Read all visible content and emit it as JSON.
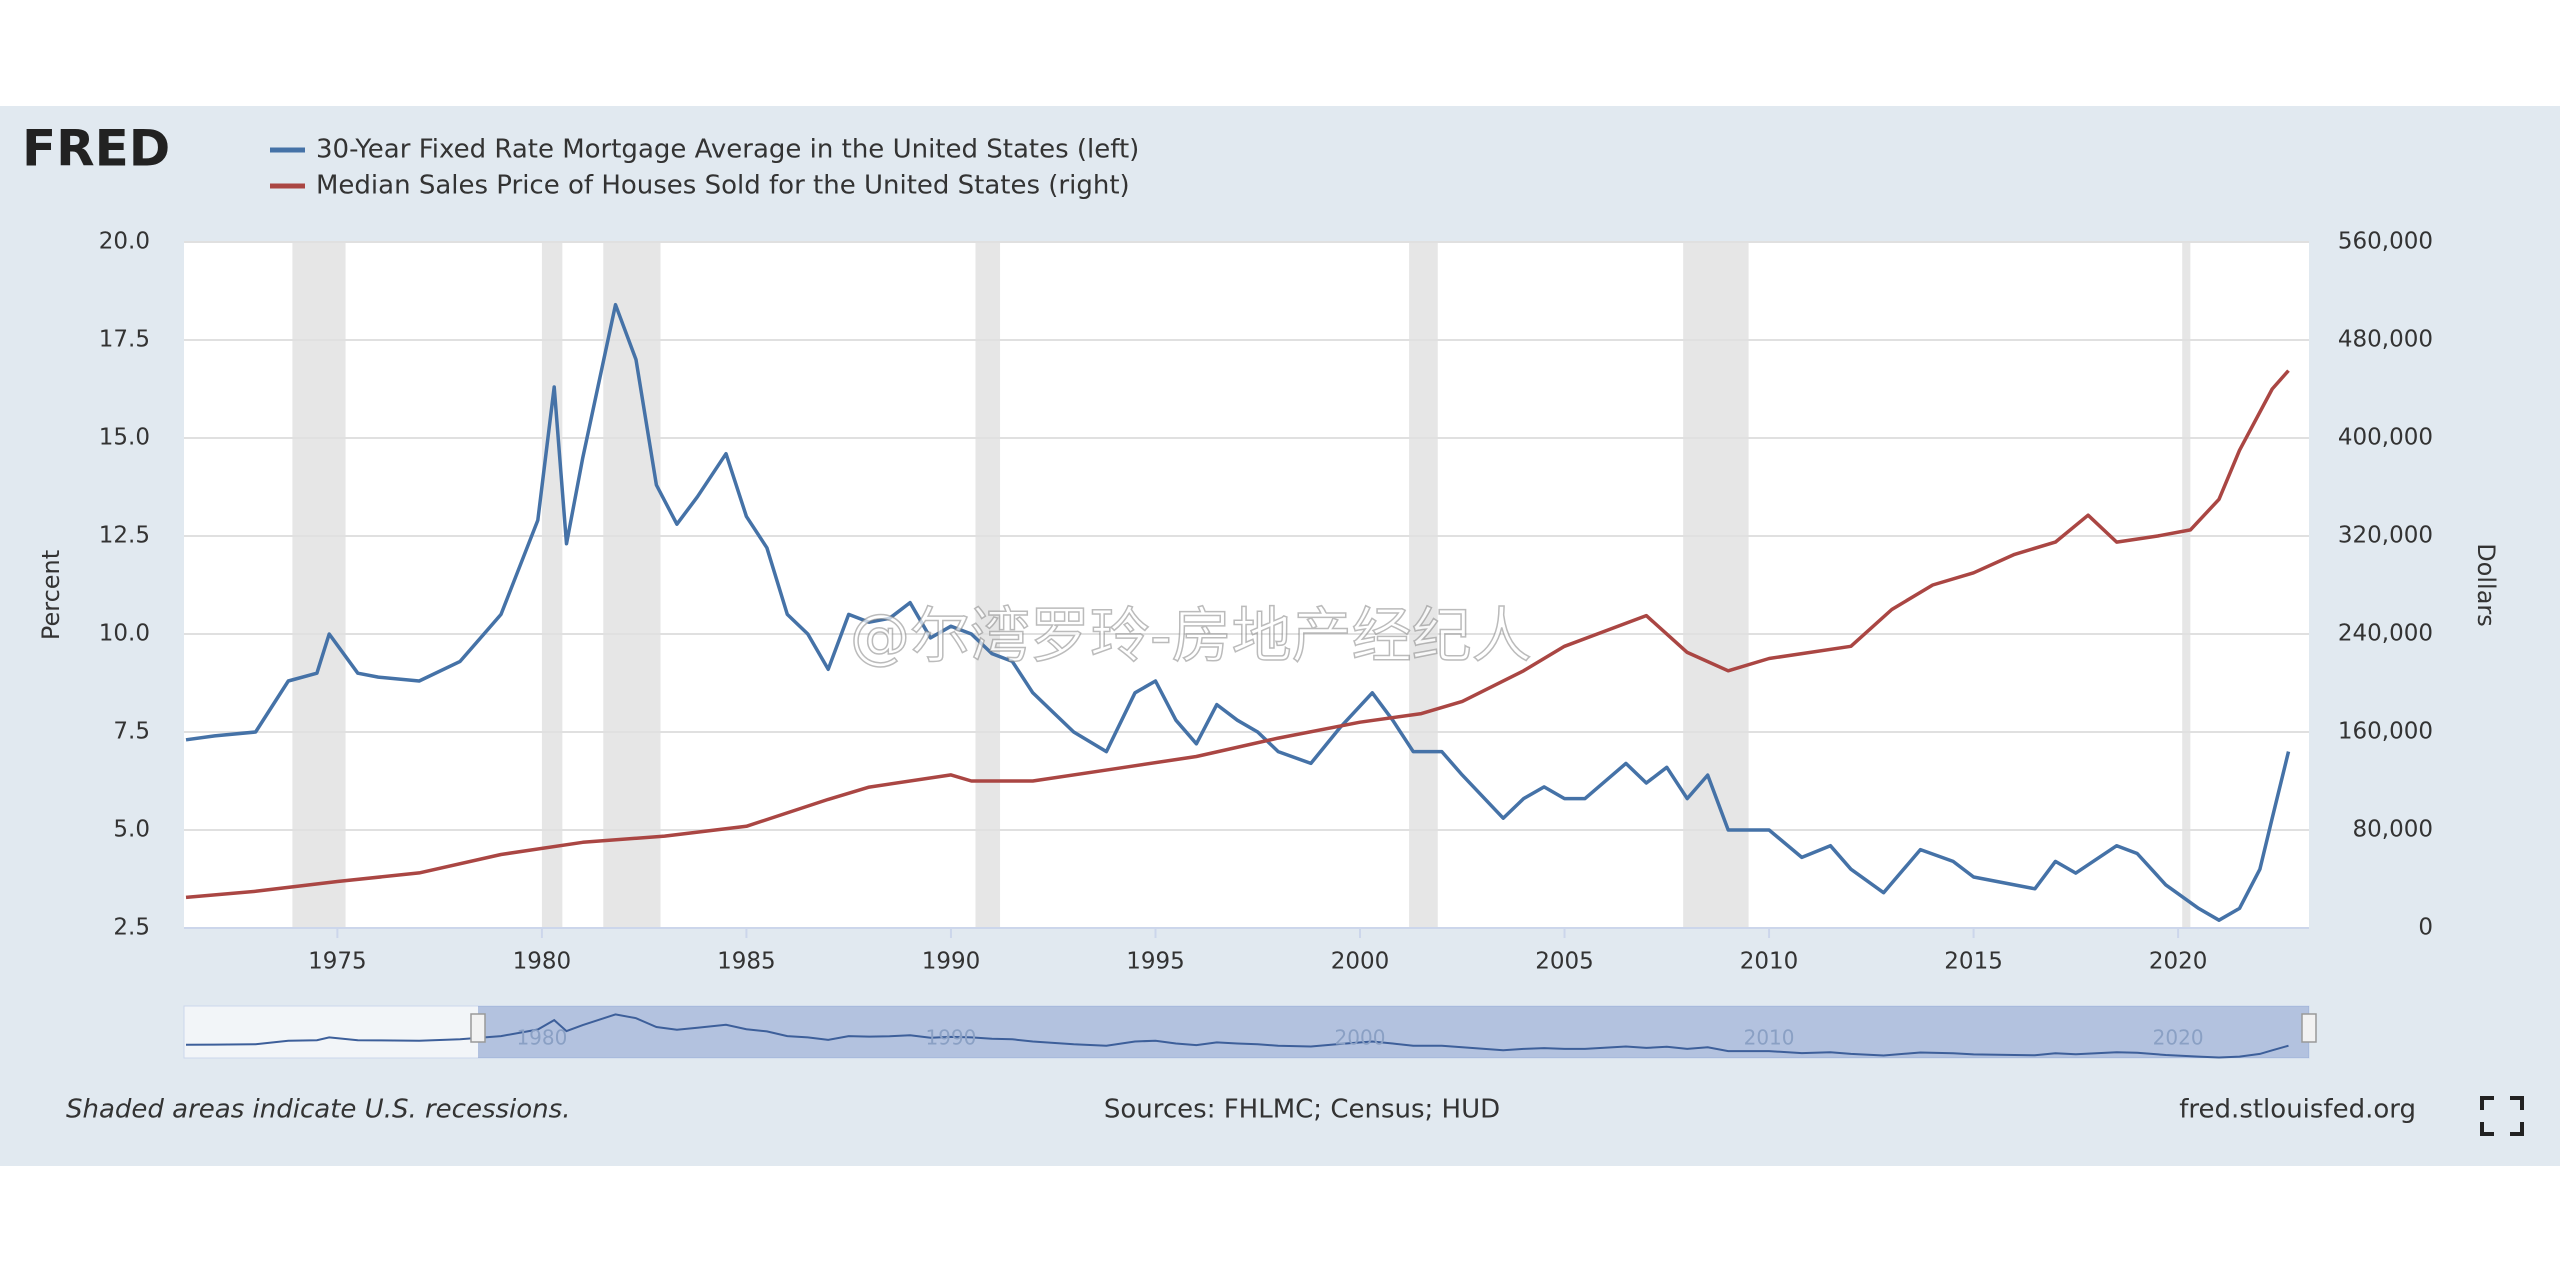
{
  "chart_data": {
    "type": "line",
    "logo": "FRED",
    "series": [
      {
        "name": "30-Year Fixed Rate Mortgage Average in the United States (left)",
        "color": "#4572a7",
        "axis": "y",
        "x": [
          1971.3,
          1972,
          1973,
          1973.8,
          1974.5,
          1974.8,
          1975.5,
          1976,
          1977,
          1978,
          1979,
          1979.9,
          1980.3,
          1980.6,
          1981,
          1981.8,
          1982.3,
          1982.8,
          1983.3,
          1983.8,
          1984.5,
          1985,
          1985.5,
          1986,
          1986.5,
          1987,
          1987.5,
          1988,
          1988.5,
          1989,
          1989.5,
          1990,
          1990.5,
          1991,
          1991.5,
          1992,
          1992.5,
          1993,
          1993.8,
          1994.5,
          1995,
          1995.5,
          1996,
          1996.5,
          1997,
          1997.5,
          1998,
          1998.8,
          1999.5,
          2000.3,
          2000.8,
          2001.3,
          2002,
          2002.5,
          2003.5,
          2004,
          2004.5,
          2005,
          2005.5,
          2006.5,
          2007,
          2007.5,
          2008,
          2008.5,
          2009,
          2010,
          2010.8,
          2011.5,
          2012,
          2012.8,
          2013.7,
          2014.5,
          2015,
          2016,
          2016.5,
          2017,
          2017.5,
          2018.5,
          2019,
          2019.7,
          2020.5,
          2021,
          2021.5,
          2022,
          2022.3,
          2022.7
        ],
        "values": [
          7.3,
          7.4,
          7.5,
          8.8,
          9.0,
          10.0,
          9.0,
          8.9,
          8.8,
          9.3,
          10.5,
          12.9,
          16.3,
          12.3,
          14.5,
          18.4,
          17.0,
          13.8,
          12.8,
          13.5,
          14.6,
          13.0,
          12.2,
          10.5,
          10.0,
          9.1,
          10.5,
          10.3,
          10.4,
          10.8,
          9.9,
          10.2,
          10.0,
          9.5,
          9.3,
          8.5,
          8.0,
          7.5,
          7.0,
          8.5,
          8.8,
          7.8,
          7.2,
          8.2,
          7.8,
          7.5,
          7.0,
          6.7,
          7.6,
          8.5,
          7.8,
          7.0,
          7.0,
          6.4,
          5.3,
          5.8,
          6.1,
          5.8,
          5.8,
          6.7,
          6.2,
          6.6,
          5.8,
          6.4,
          5.0,
          5.0,
          4.3,
          4.6,
          4.0,
          3.4,
          4.5,
          4.2,
          3.8,
          3.6,
          3.5,
          4.2,
          3.9,
          4.6,
          4.4,
          3.6,
          3.0,
          2.7,
          3.0,
          4.0,
          5.3,
          7.0
        ]
      },
      {
        "name": "Median Sales Price of Houses Sold for the United States (right)",
        "color": "#aa4643",
        "axis": "y2",
        "x": [
          1971.3,
          1973,
          1975,
          1977,
          1979,
          1981,
          1983,
          1985,
          1987,
          1988,
          1990,
          1990.5,
          1992,
          1994,
          1996,
          1998,
          2000,
          2001.5,
          2002.5,
          2004,
          2005,
          2007,
          2008,
          2009,
          2010,
          2012,
          2013,
          2014,
          2015,
          2016,
          2017,
          2017.8,
          2018.5,
          2019.5,
          2020.3,
          2021,
          2021.5,
          2022.3,
          2022.7
        ],
        "values": [
          25000,
          30000,
          38000,
          45000,
          60000,
          70000,
          75000,
          83000,
          105000,
          115000,
          125000,
          120000,
          120000,
          130000,
          140000,
          155000,
          168000,
          175000,
          185000,
          210000,
          230000,
          255000,
          225000,
          210000,
          220000,
          230000,
          260000,
          280000,
          290000,
          305000,
          315000,
          337000,
          315000,
          320000,
          325000,
          350000,
          390000,
          440000,
          455000
        ]
      }
    ],
    "xlim": [
      1971.25,
      2023.2
    ],
    "xticks": [
      1975,
      1980,
      1985,
      1990,
      1995,
      2000,
      2005,
      2010,
      2015,
      2020
    ],
    "ylim": [
      2.5,
      20
    ],
    "yticks": [
      {
        "value": 2.5,
        "label": "2.5"
      },
      {
        "value": 5,
        "label": "5.0"
      },
      {
        "value": 7.5,
        "label": "7.5"
      },
      {
        "value": 10,
        "label": "10.0"
      },
      {
        "value": 12.5,
        "label": "12.5"
      },
      {
        "value": 15,
        "label": "15.0"
      },
      {
        "value": 17.5,
        "label": "17.5"
      },
      {
        "value": 20,
        "label": "20.0"
      }
    ],
    "y2lim": [
      0,
      560000
    ],
    "y2ticks": [
      0,
      {
        "value": 80000,
        "label": "80,000"
      },
      {
        "value": 160000,
        "label": "160,000"
      },
      {
        "value": 240000,
        "label": "240,000"
      },
      {
        "value": 320000,
        "label": "320,000"
      },
      {
        "value": 400000,
        "label": "400,000"
      },
      {
        "value": 480000,
        "label": "480,000"
      },
      {
        "value": 560000,
        "label": "560,000"
      }
    ],
    "ylabel": "Percent",
    "y2label": "Dollars",
    "recessions": [
      [
        1973.9,
        1975.2
      ],
      [
        1980.0,
        1980.5
      ],
      [
        1981.5,
        1982.9
      ],
      [
        1990.6,
        1991.2
      ],
      [
        2001.2,
        2001.9
      ],
      [
        2007.9,
        2009.5
      ],
      [
        2020.1,
        2020.3
      ]
    ],
    "navigator_ticks": [
      1980,
      1990,
      2000,
      2010,
      2020
    ],
    "grid": true,
    "note": "Shaded areas indicate U.S. recessions.",
    "source": "Sources: FHLMC; Census; HUD",
    "site": "fred.stlouisfed.org",
    "watermark": "@尔湾罗玲-房地产经纪人"
  }
}
